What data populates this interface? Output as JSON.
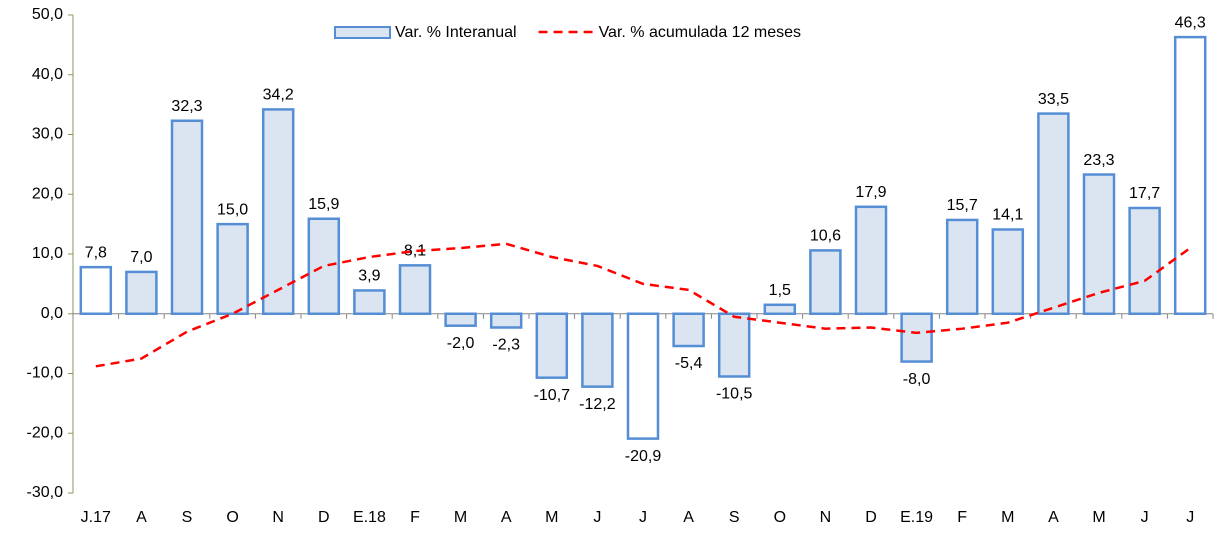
{
  "chart_data": {
    "type": "bar_line",
    "categories": [
      "J.17",
      "A",
      "S",
      "O",
      "N",
      "D",
      "E.18",
      "F",
      "M",
      "A",
      "M",
      "J",
      "J",
      "A",
      "S",
      "O",
      "N",
      "D",
      "E.19",
      "F",
      "M",
      "A",
      "M",
      "J",
      "J"
    ],
    "series": [
      {
        "name": "Var. % Interanual",
        "type": "bar",
        "color": "#558ed5",
        "colors": [
          "#ffffff",
          "#dbe5f1",
          "#dbe5f1",
          "#dbe5f1",
          "#dbe5f1",
          "#dbe5f1",
          "#dbe5f1",
          "#dbe5f1",
          "#dbe5f1",
          "#dbe5f1",
          "#dbe5f1",
          "#dbe5f1",
          "#ffffff",
          "#dbe5f1",
          "#dbe5f1",
          "#dbe5f1",
          "#dbe5f1",
          "#dbe5f1",
          "#dbe5f1",
          "#dbe5f1",
          "#dbe5f1",
          "#dbe5f1",
          "#dbe5f1",
          "#dbe5f1",
          "#ffffff"
        ],
        "values": [
          7.8,
          7.0,
          32.3,
          15.0,
          34.2,
          15.9,
          3.9,
          8.1,
          -2.0,
          -2.3,
          -10.7,
          -12.2,
          -20.9,
          -5.4,
          -10.5,
          1.5,
          10.6,
          17.9,
          -8.0,
          15.7,
          14.1,
          33.5,
          23.3,
          17.7,
          46.3
        ],
        "value_labels": [
          "7,8",
          "7,0",
          "32,3",
          "15,0",
          "34,2",
          "15,9",
          "3,9",
          "8,1",
          "-2,0",
          "-2,3",
          "-10,7",
          "-12,2",
          "-20,9",
          "-5,4",
          "-10,5",
          "1,5",
          "10,6",
          "17,9",
          "-8,0",
          "15,7",
          "14,1",
          "33,5",
          "23,3",
          "17,7",
          "46,3"
        ]
      },
      {
        "name": "Var. % acumulada 12 meses",
        "type": "line",
        "color": "#ff0000",
        "values": [
          -8.8,
          -7.5,
          -3.0,
          0.0,
          4.0,
          8.0,
          9.5,
          10.5,
          11.0,
          11.7,
          9.5,
          8.0,
          5.0,
          4.0,
          -0.5,
          -1.5,
          -2.5,
          -2.3,
          -3.2,
          -2.5,
          -1.5,
          1.0,
          3.5,
          5.5,
          11.0
        ]
      }
    ],
    "ylim": [
      -30,
      50
    ],
    "yticks": [
      {
        "value": -30,
        "label": "-30,0"
      },
      {
        "value": -20,
        "label": "-20,0"
      },
      {
        "value": -10,
        "label": "-10,0"
      },
      {
        "value": 0,
        "label": "0,0"
      },
      {
        "value": 10,
        "label": "10,0"
      },
      {
        "value": 20,
        "label": "20,0"
      },
      {
        "value": 30,
        "label": "30,0"
      },
      {
        "value": 40,
        "label": "40,0"
      },
      {
        "value": 50,
        "label": "50,0"
      }
    ],
    "grid": false,
    "legend": "top"
  }
}
